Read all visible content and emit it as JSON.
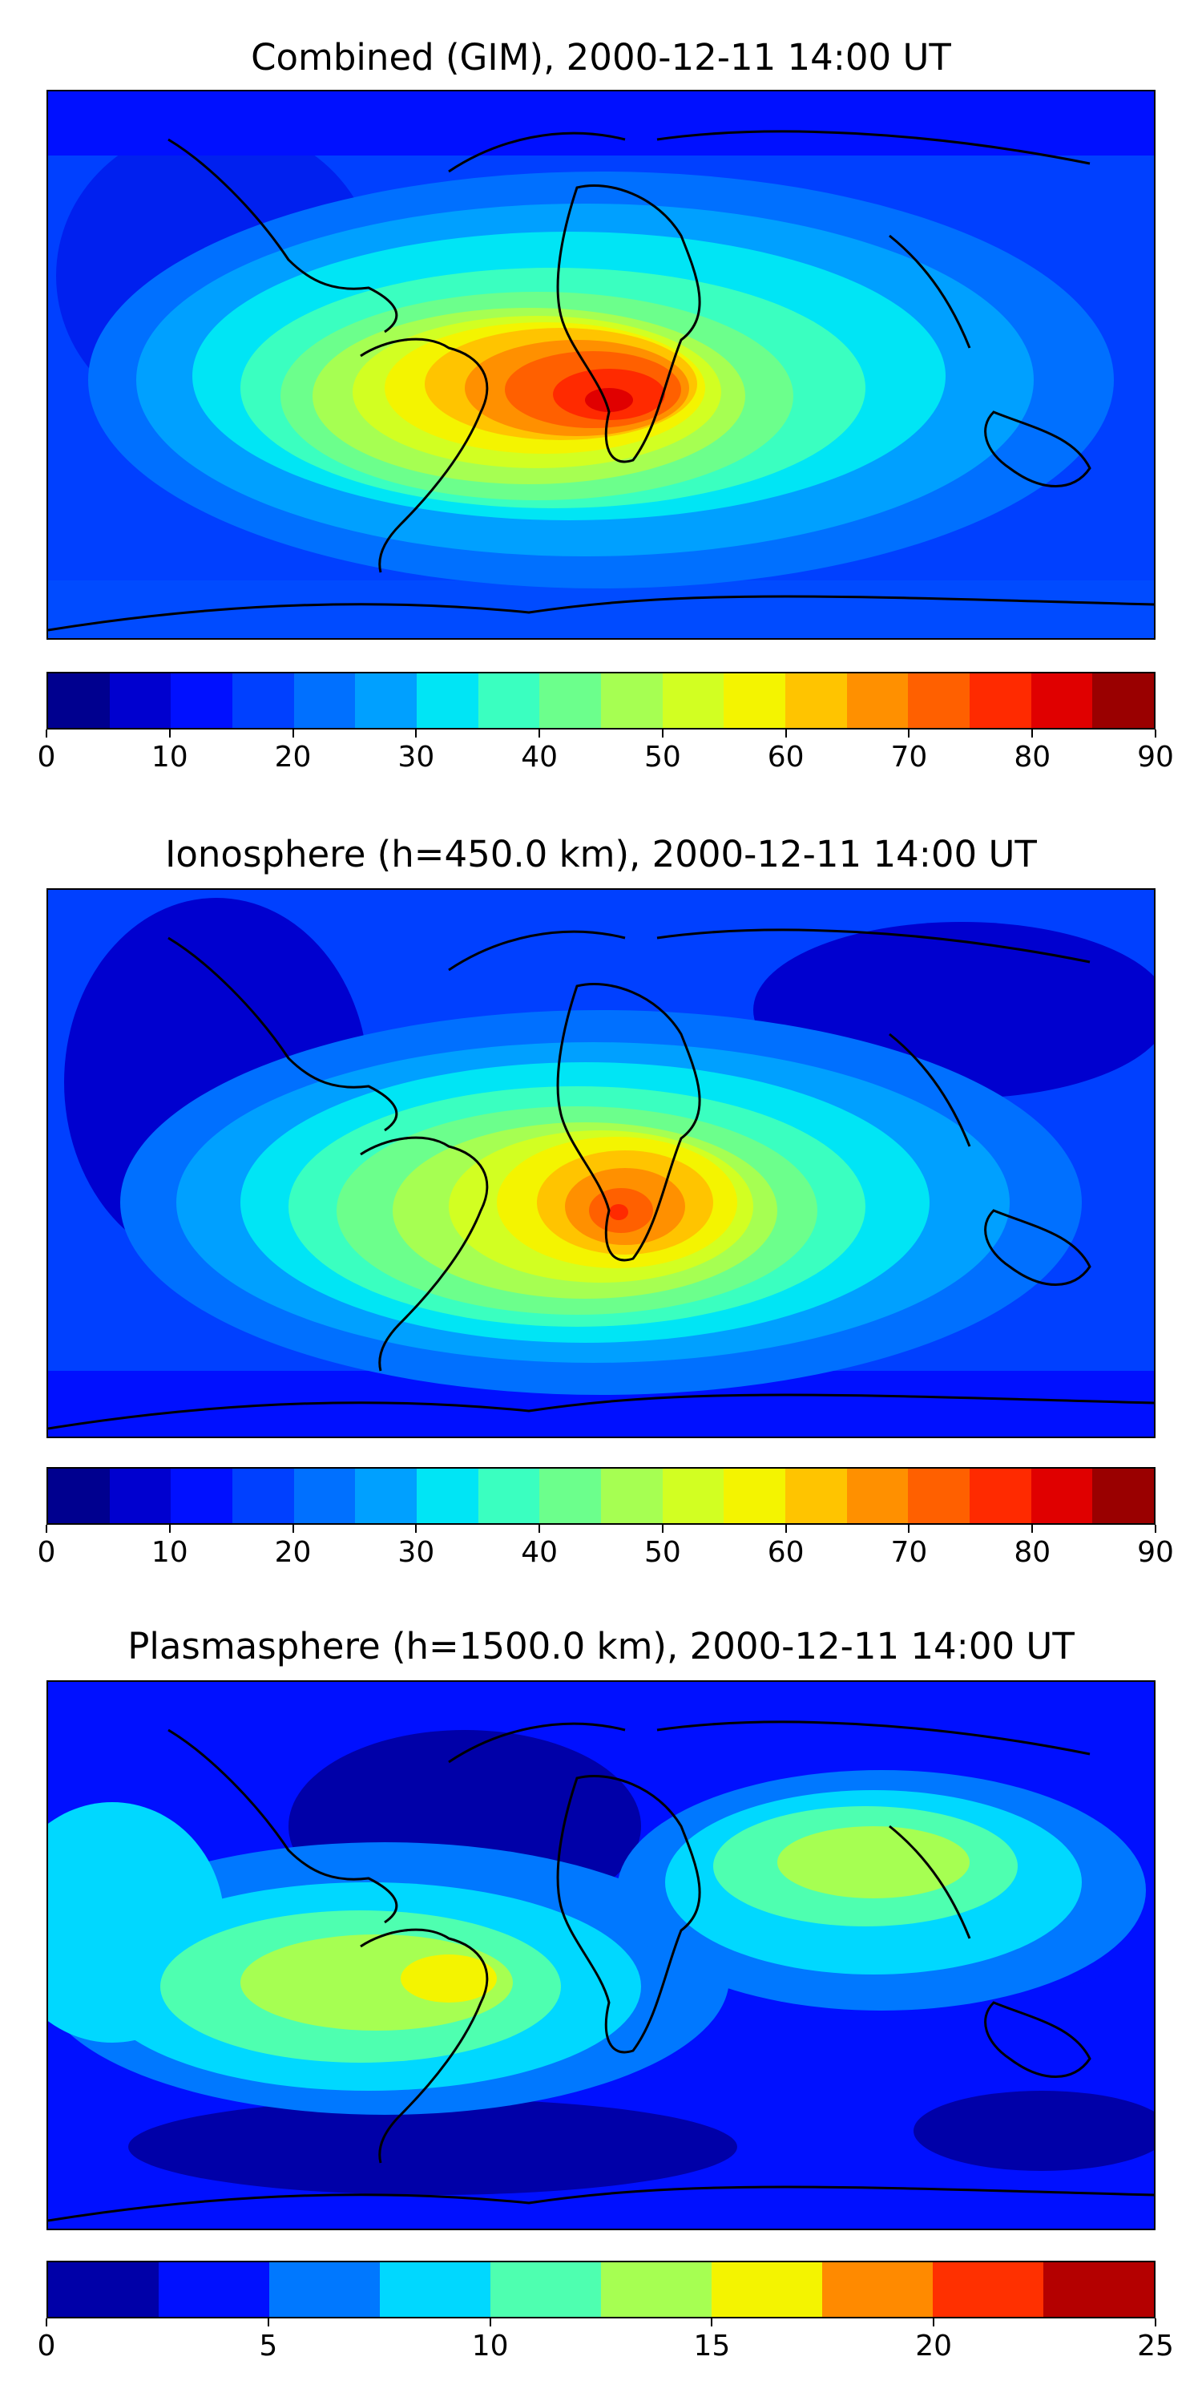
{
  "panels": [
    {
      "title": "Combined (GIM), 2000-12-11 14:00 UT",
      "colorbar": {
        "min": 0,
        "max": 90,
        "ticks": [
          "0",
          "10",
          "20",
          "30",
          "40",
          "50",
          "60",
          "70",
          "80",
          "90"
        ],
        "colors": [
          "#00008f",
          "#0000cf",
          "#0010ff",
          "#0040ff",
          "#0070ff",
          "#00a0ff",
          "#00e5f5",
          "#3affc0",
          "#6cff8c",
          "#a6ff52",
          "#d2ff22",
          "#f4f400",
          "#ffc400",
          "#ff9000",
          "#ff6000",
          "#ff2a00",
          "#e00000",
          "#9a0000"
        ]
      }
    },
    {
      "title": "Ionosphere  (h=450.0 km), 2000-12-11 14:00 UT",
      "colorbar": {
        "min": 0,
        "max": 90,
        "ticks": [
          "0",
          "10",
          "20",
          "30",
          "40",
          "50",
          "60",
          "70",
          "80",
          "90"
        ],
        "colors": [
          "#00008f",
          "#0000cf",
          "#0010ff",
          "#0040ff",
          "#0070ff",
          "#00a0ff",
          "#00e5f5",
          "#3affc0",
          "#6cff8c",
          "#a6ff52",
          "#d2ff22",
          "#f4f400",
          "#ffc400",
          "#ff9000",
          "#ff6000",
          "#ff2a00",
          "#e00000",
          "#9a0000"
        ]
      }
    },
    {
      "title": "Plasmasphere (h=1500.0 km), 2000-12-11 14:00 UT",
      "colorbar": {
        "min": 0,
        "max": 25,
        "ticks": [
          "0",
          "5",
          "10",
          "15",
          "20",
          "25"
        ],
        "colors": [
          "#0000a8",
          "#0010ff",
          "#0078ff",
          "#00d8ff",
          "#4effb0",
          "#a6ff52",
          "#f4f400",
          "#ff8a00",
          "#ff3000",
          "#b40000"
        ]
      }
    }
  ]
}
